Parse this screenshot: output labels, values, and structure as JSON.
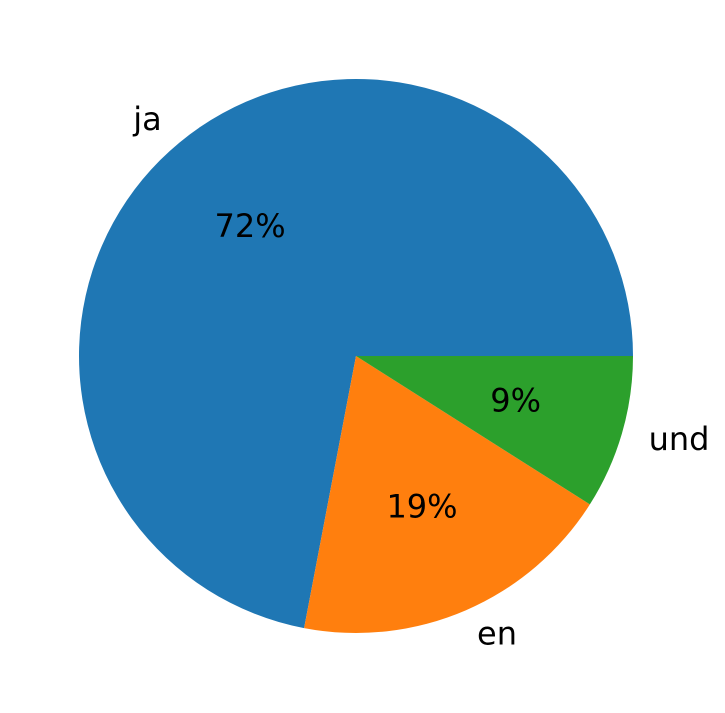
{
  "chart_data": {
    "type": "pie",
    "categories": [
      "ja",
      "en",
      "und"
    ],
    "values": [
      72,
      19,
      9
    ],
    "value_labels": [
      "72%",
      "19%",
      "9%"
    ],
    "colors": [
      "#1f77b4",
      "#ff7f0e",
      "#2ca02c"
    ]
  }
}
